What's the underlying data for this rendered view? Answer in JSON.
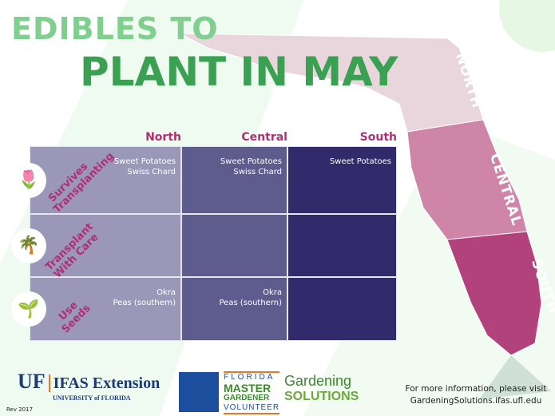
{
  "title": {
    "line1": "EDIBLES TO",
    "line2": "PLANT IN MAY"
  },
  "map_regions": [
    "NORTH",
    "CENTRAL",
    "SOUTH"
  ],
  "colors": {
    "north": "#e8d6dc",
    "central": "#cf85a8",
    "south": "#b2427b",
    "accent": "#b02f72",
    "title_green": "#3aa152"
  },
  "table": {
    "columns": [
      "North",
      "Central",
      "South"
    ],
    "rows": [
      {
        "label": "Survives Transplanting",
        "icon": "plant-icon",
        "cells": [
          [
            "Sweet Potatoes",
            "Swiss Chard"
          ],
          [
            "Sweet Potatoes",
            "Swiss Chard"
          ],
          [
            "Sweet Potatoes"
          ]
        ]
      },
      {
        "label": "Transplant With Care",
        "icon": "palm-tree-icon",
        "cells": [
          [],
          [],
          []
        ]
      },
      {
        "label": "Use Seeds",
        "icon": "seed-packet-icon",
        "cells": [
          [
            "Okra",
            "Peas (southern)"
          ],
          [
            "Okra",
            "Peas (southern)"
          ],
          []
        ]
      }
    ]
  },
  "footer": {
    "uf": "UF",
    "ifas": "IFAS Extension",
    "university": "UNIVERSITY of FLORIDA",
    "fmg": [
      "FLORIDA",
      "MASTER",
      "GARDENER",
      "VOLUNTEER"
    ],
    "gs": [
      "Gardening",
      "SOLUTIONS"
    ],
    "info1": "For more information, please visit",
    "info2": "GardeningSolutions.ifas.ufl.edu",
    "rev": "Rev 2017"
  }
}
